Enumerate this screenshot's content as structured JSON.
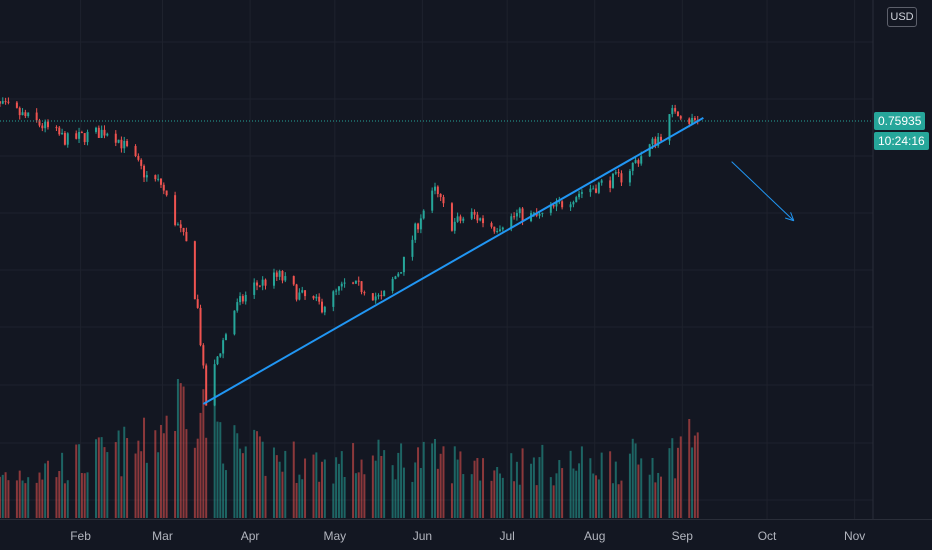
{
  "currency": "USD",
  "price_label": "0.75935",
  "countdown_label": "10:24:16",
  "colors": {
    "background": "#131722",
    "grid": "#1e222d",
    "up": "#26a69a",
    "down": "#ef5350",
    "trendline": "#2196f3",
    "price_badge": "#26a69a"
  },
  "chart_data": {
    "type": "candlestick",
    "symbol_quote": "USD",
    "last_price": 0.75935,
    "x_axis": {
      "ticks": [
        "Feb",
        "Mar",
        "Apr",
        "May",
        "Jun",
        "Jul",
        "Aug",
        "Sep",
        "Oct",
        "Nov"
      ]
    },
    "y_axis": {
      "range": [
        0.5,
        0.79
      ],
      "tick_labels": []
    },
    "grid": true,
    "price_path": [
      {
        "date": "2020-01-01",
        "close": 0.775
      },
      {
        "date": "2020-01-10",
        "close": 0.77
      },
      {
        "date": "2020-01-20",
        "close": 0.758
      },
      {
        "date": "2020-01-31",
        "close": 0.743
      },
      {
        "date": "2020-02-10",
        "close": 0.749
      },
      {
        "date": "2020-02-15",
        "close": 0.752
      },
      {
        "date": "2020-02-21",
        "close": 0.735
      },
      {
        "date": "2020-02-28",
        "close": 0.712
      },
      {
        "date": "2020-03-04",
        "close": 0.706
      },
      {
        "date": "2020-03-09",
        "close": 0.675
      },
      {
        "date": "2020-03-13",
        "close": 0.655
      },
      {
        "date": "2020-03-17",
        "close": 0.6
      },
      {
        "date": "2020-03-20",
        "close": 0.52
      },
      {
        "date": "2020-03-24",
        "close": 0.56
      },
      {
        "date": "2020-03-30",
        "close": 0.6
      },
      {
        "date": "2020-04-06",
        "close": 0.62
      },
      {
        "date": "2020-04-15",
        "close": 0.628
      },
      {
        "date": "2020-04-22",
        "close": 0.612
      },
      {
        "date": "2020-04-30",
        "close": 0.603
      },
      {
        "date": "2020-05-08",
        "close": 0.62
      },
      {
        "date": "2020-05-15",
        "close": 0.618
      },
      {
        "date": "2020-05-21",
        "close": 0.608
      },
      {
        "date": "2020-05-29",
        "close": 0.64
      },
      {
        "date": "2020-06-04",
        "close": 0.68
      },
      {
        "date": "2020-06-09",
        "close": 0.7
      },
      {
        "date": "2020-06-15",
        "close": 0.672
      },
      {
        "date": "2020-06-22",
        "close": 0.68
      },
      {
        "date": "2020-06-30",
        "close": 0.67
      },
      {
        "date": "2020-07-08",
        "close": 0.68
      },
      {
        "date": "2020-07-16",
        "close": 0.678
      },
      {
        "date": "2020-07-24",
        "close": 0.69
      },
      {
        "date": "2020-07-31",
        "close": 0.7
      },
      {
        "date": "2020-08-07",
        "close": 0.706
      },
      {
        "date": "2020-08-14",
        "close": 0.712
      },
      {
        "date": "2020-08-21",
        "close": 0.73
      },
      {
        "date": "2020-08-28",
        "close": 0.748
      },
      {
        "date": "2020-09-02",
        "close": 0.77
      },
      {
        "date": "2020-09-07",
        "close": 0.76
      },
      {
        "date": "2020-09-10",
        "close": 0.7593
      }
    ],
    "volume_path": [
      {
        "date": "2020-01-01",
        "volume": 30
      },
      {
        "date": "2020-01-31",
        "volume": 40
      },
      {
        "date": "2020-02-28",
        "volume": 55
      },
      {
        "date": "2020-03-13",
        "volume": 95
      },
      {
        "date": "2020-03-31",
        "volume": 50
      },
      {
        "date": "2020-04-30",
        "volume": 40
      },
      {
        "date": "2020-05-31",
        "volume": 45
      },
      {
        "date": "2020-06-30",
        "volume": 40
      },
      {
        "date": "2020-07-31",
        "volume": 40
      },
      {
        "date": "2020-08-31",
        "volume": 45
      },
      {
        "date": "2020-09-10",
        "volume": 70
      }
    ],
    "annotations": {
      "trendline": {
        "start": {
          "date": "2020-03-19",
          "price": 0.52
        },
        "end": {
          "date": "2020-09-12",
          "price": 0.762
        }
      },
      "arrow": {
        "start": {
          "date": "2020-09-22",
          "price": 0.725
        },
        "end": {
          "date": "2020-10-14",
          "price": 0.675
        }
      }
    }
  }
}
